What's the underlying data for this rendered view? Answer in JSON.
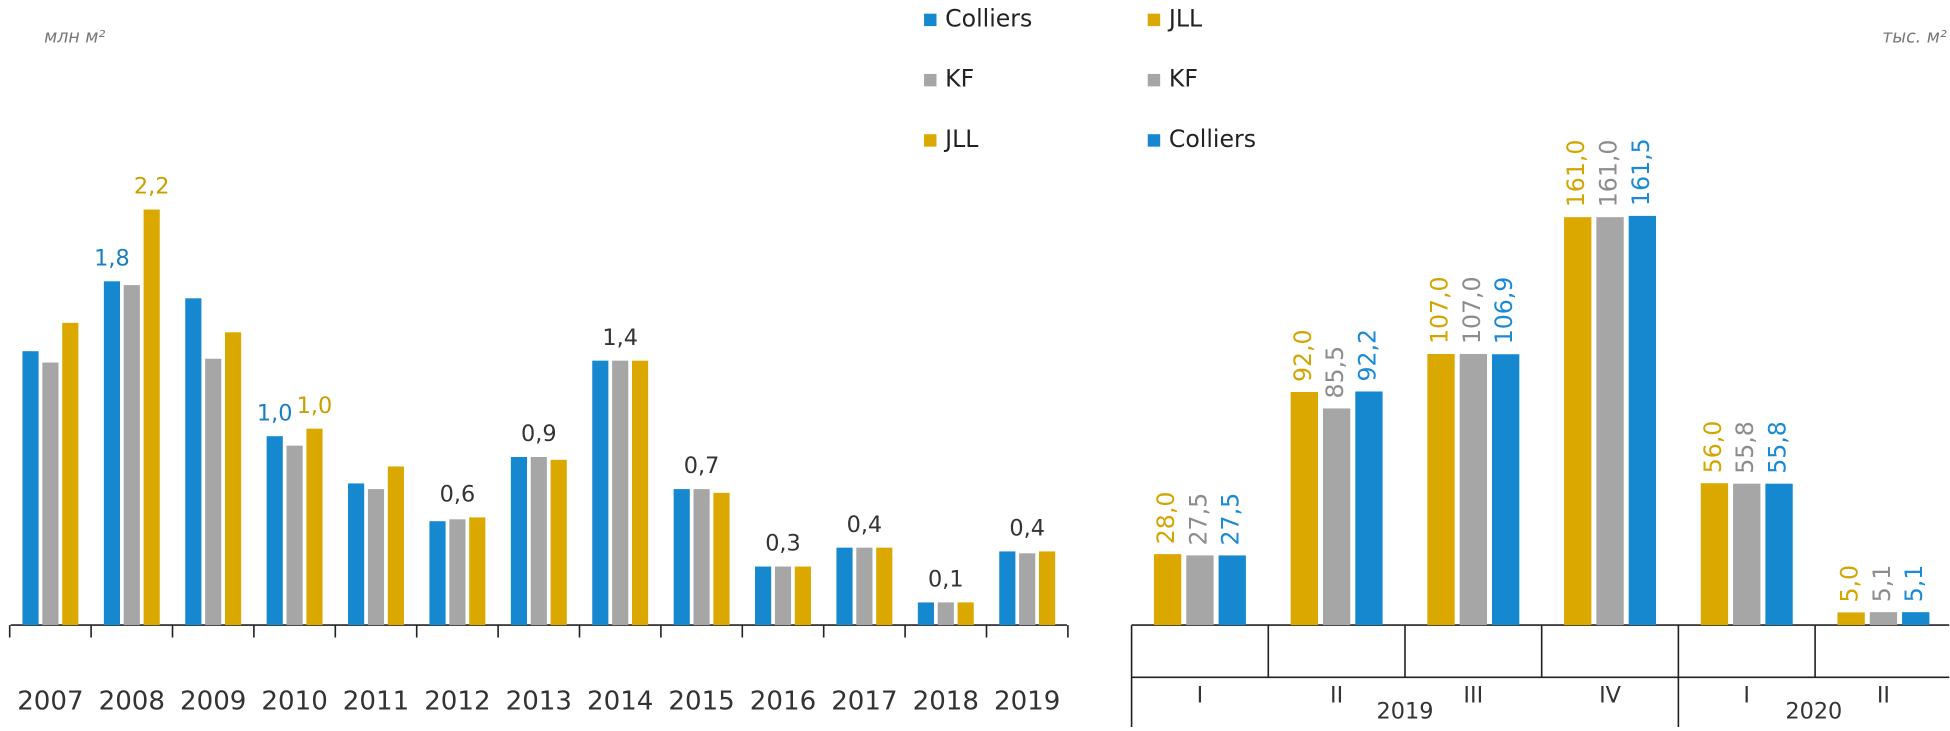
{
  "chart_data": [
    {
      "type": "bar",
      "axis_label": "млн м²",
      "categories": [
        "2007",
        "2008",
        "2009",
        "2010",
        "2011",
        "2012",
        "2013",
        "2014",
        "2015",
        "2016",
        "2017",
        "2018",
        "2019"
      ],
      "ylim": [
        0,
        2.5
      ],
      "series": [
        {
          "name": "Colliers",
          "color": "#1688cf",
          "label_color": "#1a7fc0",
          "values": [
            1.45,
            1.82,
            1.73,
            1.0,
            0.75,
            0.55,
            0.89,
            1.4,
            0.72,
            0.31,
            0.41,
            0.12,
            0.39
          ],
          "value_labels": [
            null,
            "1,8",
            null,
            "1,0",
            null,
            null,
            null,
            null,
            null,
            null,
            null,
            null,
            null
          ]
        },
        {
          "name": "KF",
          "color": "#a6a6a6",
          "label_color": "#333333",
          "values": [
            1.39,
            1.8,
            1.41,
            0.95,
            0.72,
            0.56,
            0.89,
            1.4,
            0.72,
            0.31,
            0.41,
            0.12,
            0.38
          ],
          "value_labels": [
            null,
            null,
            null,
            null,
            null,
            "0,6",
            "0,9",
            "1,4",
            "0,7",
            "0,3",
            "0,4",
            "0,1",
            "0,4"
          ]
        },
        {
          "name": "JLL",
          "color": "#dba800",
          "label_color": "#c89e00",
          "values": [
            1.6,
            2.2,
            1.55,
            1.04,
            0.84,
            0.57,
            0.875,
            1.4,
            0.7,
            0.31,
            0.41,
            0.12,
            0.39
          ],
          "value_labels": [
            null,
            "2,2",
            null,
            "1,0",
            null,
            null,
            null,
            null,
            null,
            null,
            null,
            null,
            null
          ]
        }
      ]
    },
    {
      "type": "bar",
      "axis_label": "тыс. м²",
      "groups": [
        {
          "name": "2019",
          "categories": [
            "I",
            "II",
            "III",
            "IV"
          ]
        },
        {
          "name": "2020",
          "categories": [
            "I",
            "II"
          ]
        }
      ],
      "ylim": [
        0,
        180
      ],
      "series": [
        {
          "name": "JLL",
          "color": "#dba800",
          "label_color": "#d4a400",
          "values": [
            28,
            92,
            107,
            161,
            56,
            5
          ],
          "value_labels": [
            "28,0",
            "92,0",
            "107,0",
            "161,0",
            "56,0",
            "5,0"
          ]
        },
        {
          "name": "KF",
          "color": "#a6a6a6",
          "label_color": "#8c8c8c",
          "values": [
            27.5,
            85.5,
            107,
            161,
            55.8,
            5.1
          ],
          "value_labels": [
            "27,5",
            "85,5",
            "107,0",
            "161,0",
            "55,8",
            "5,1"
          ]
        },
        {
          "name": "Colliers",
          "color": "#1688cf",
          "label_color": "#1a8ad4",
          "values": [
            27.5,
            92.2,
            106.9,
            161.5,
            55.8,
            5.1
          ],
          "value_labels": [
            "27,5",
            "92,2",
            "106,9",
            "161,5",
            "55,8",
            "5,1"
          ]
        }
      ]
    }
  ]
}
